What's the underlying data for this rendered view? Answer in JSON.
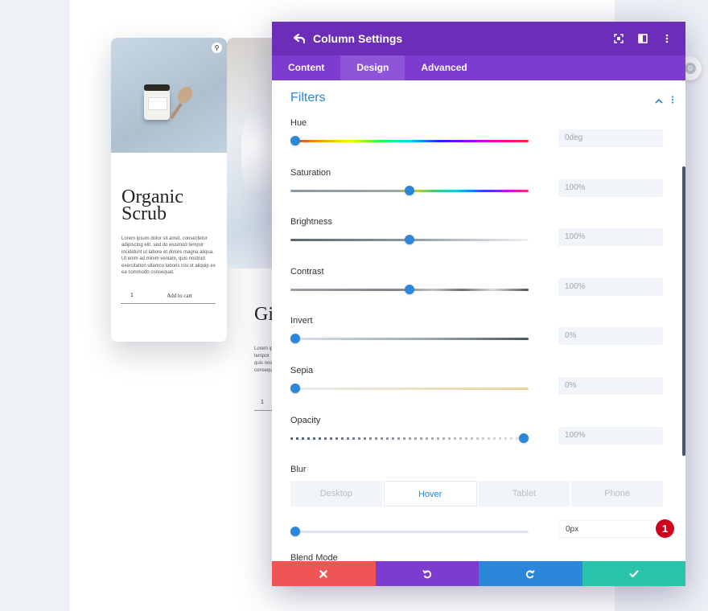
{
  "background": {
    "card1": {
      "title_line1": "Organic",
      "title_line2": "Scrub",
      "body": "Lorem ipsum dolor sit amet, consectetur adipiscing elit, sed do eiusmod tempor incididunt ut labore et dolore magna aliqua. Ut enim ad minim veniam, quis nostrud exercitation ullamco laboris nisi ut aliquip ex ea commodo consequat.",
      "qty": "1",
      "add_label": "Add to cart"
    },
    "card2": {
      "title": "Gi",
      "body_lines": [
        "Lorem ip",
        "tempor",
        "quis nos",
        "consequ"
      ],
      "qty": "1"
    }
  },
  "modal": {
    "title": "Column Settings",
    "tabs": [
      {
        "label": "Content",
        "active": false
      },
      {
        "label": "Design",
        "active": true
      },
      {
        "label": "Advanced",
        "active": false
      }
    ],
    "section_title": "Filters",
    "filters": [
      {
        "label": "Hue",
        "value": "0deg",
        "position": 0.0
      },
      {
        "label": "Saturation",
        "value": "100%",
        "position": 0.5
      },
      {
        "label": "Brightness",
        "value": "100%",
        "position": 0.5
      },
      {
        "label": "Contrast",
        "value": "100%",
        "position": 0.5
      },
      {
        "label": "Invert",
        "value": "0%",
        "position": 0.0
      },
      {
        "label": "Sepia",
        "value": "0%",
        "position": 0.0
      },
      {
        "label": "Opacity",
        "value": "100%",
        "position": 1.0
      }
    ],
    "blur": {
      "label": "Blur",
      "device_tabs": [
        {
          "label": "Desktop",
          "active": false
        },
        {
          "label": "Hover",
          "active": true
        },
        {
          "label": "Tablet",
          "active": false
        },
        {
          "label": "Phone",
          "active": false
        }
      ],
      "value": "0px",
      "position": 0.0
    },
    "badge": "1",
    "next_label": "Blend Mode"
  },
  "colors": {
    "header": "#6c2eb9",
    "tabs": "#7e3bd0",
    "accent": "#2b87da",
    "cancel": "#ef5555",
    "undo": "#7e3bd0",
    "redo": "#2b87da",
    "save": "#29c4a9"
  },
  "icons": {
    "back": "back-arrow-icon",
    "header_right": [
      "fullscreen-icon",
      "split-view-icon",
      "more-vertical-icon"
    ],
    "footer": [
      "close-icon",
      "undo-icon",
      "redo-icon",
      "check-icon"
    ]
  }
}
